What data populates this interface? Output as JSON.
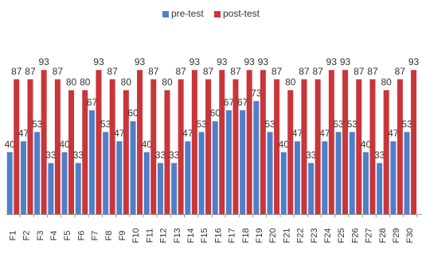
{
  "chart_data": {
    "type": "bar",
    "title": "",
    "xlabel": "",
    "ylabel": "",
    "ylim": [
      0,
      110
    ],
    "grid": false,
    "legend_position": "top-center",
    "categories": [
      "F1",
      "F2",
      "F3",
      "F4",
      "F5",
      "F6",
      "F7",
      "F8",
      "F9",
      "F10",
      "F11",
      "F12",
      "F13",
      "F14",
      "F15",
      "F16",
      "F17",
      "F18",
      "F19",
      "F20",
      "F21",
      "F22",
      "F23",
      "F24",
      "F25",
      "F26",
      "F27",
      "F28",
      "F29",
      "F30"
    ],
    "series": [
      {
        "name": "pre-test",
        "color": "#4f7fc9",
        "values": [
          40,
          47,
          53,
          33,
          40,
          33,
          67,
          53,
          47,
          60,
          40,
          33,
          33,
          47,
          53,
          60,
          67,
          67,
          73,
          53,
          40,
          47,
          33,
          47,
          53,
          53,
          40,
          33,
          47,
          53
        ]
      },
      {
        "name": "post-test",
        "color": "#c9363a",
        "values": [
          87,
          87,
          93,
          87,
          80,
          80,
          93,
          87,
          80,
          93,
          87,
          80,
          87,
          93,
          87,
          93,
          87,
          93,
          93,
          87,
          80,
          87,
          87,
          93,
          93,
          87,
          87,
          80,
          87,
          93
        ]
      }
    ]
  }
}
